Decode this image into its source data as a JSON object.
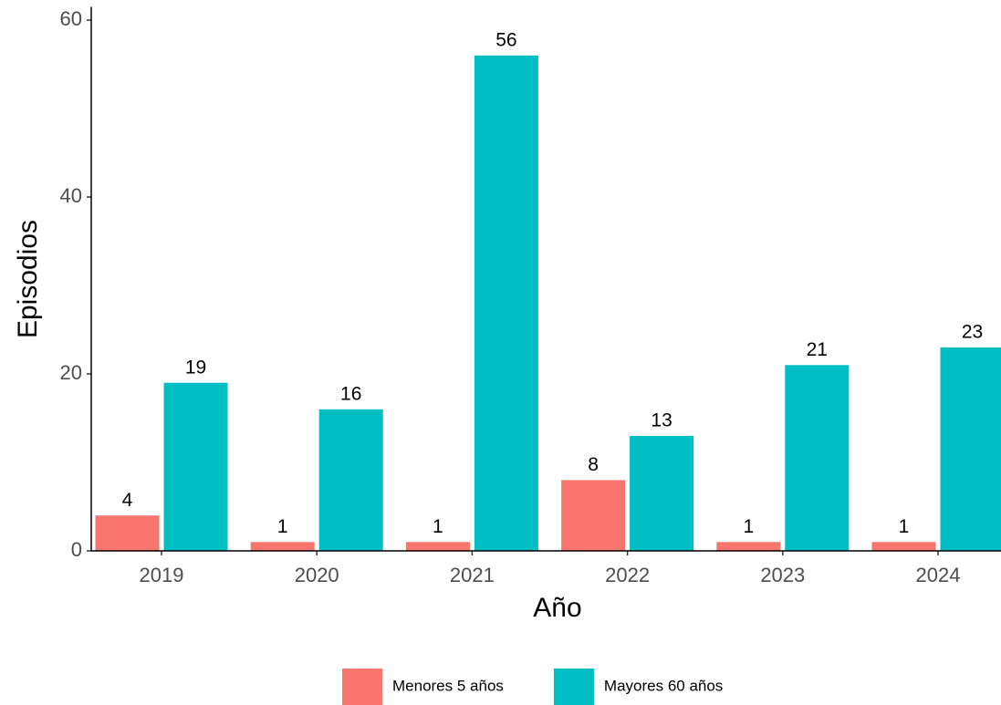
{
  "chart_data": {
    "type": "bar",
    "x_label": "Año",
    "y_label": "Episodios",
    "categories": [
      "2019",
      "2020",
      "2021",
      "2022",
      "2023",
      "2024"
    ],
    "series": [
      {
        "name": "Menores 5 años",
        "color": "#F8766D",
        "values": [
          4,
          1,
          1,
          8,
          1,
          1
        ]
      },
      {
        "name": "Mayores 60 años",
        "color": "#00BFC4",
        "values": [
          19,
          16,
          56,
          13,
          21,
          23
        ]
      }
    ],
    "ylim": [
      0,
      61.5
    ],
    "yticks": [
      0,
      20,
      40,
      60
    ],
    "grid": false,
    "legend": "bottom"
  }
}
